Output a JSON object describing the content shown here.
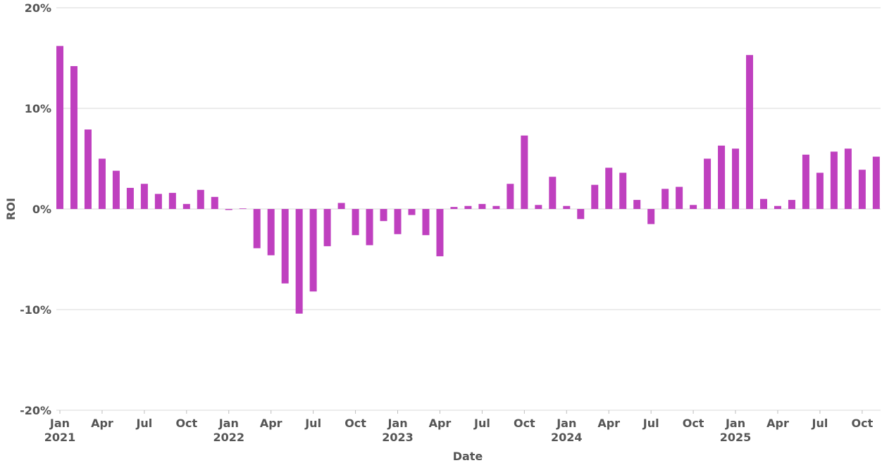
{
  "chart_data": {
    "type": "bar",
    "xlabel": "Date",
    "ylabel": "ROI",
    "ylim": [
      -20,
      20
    ],
    "y_ticks": [
      {
        "value": 20,
        "label": "20%"
      },
      {
        "value": 10,
        "label": "10%"
      },
      {
        "value": 0,
        "label": "0%"
      },
      {
        "value": -10,
        "label": "-10%"
      },
      {
        "value": -20,
        "label": "-20%"
      }
    ],
    "x_ticks": [
      {
        "date": "2021-01",
        "label": "Jan",
        "year": "2021"
      },
      {
        "date": "2021-04",
        "label": "Apr",
        "year": ""
      },
      {
        "date": "2021-07",
        "label": "Jul",
        "year": ""
      },
      {
        "date": "2021-10",
        "label": "Oct",
        "year": ""
      },
      {
        "date": "2022-01",
        "label": "Jan",
        "year": "2022"
      },
      {
        "date": "2022-04",
        "label": "Apr",
        "year": ""
      },
      {
        "date": "2022-07",
        "label": "Jul",
        "year": ""
      },
      {
        "date": "2022-10",
        "label": "Oct",
        "year": ""
      },
      {
        "date": "2023-01",
        "label": "Jan",
        "year": "2023"
      },
      {
        "date": "2023-04",
        "label": "Apr",
        "year": ""
      },
      {
        "date": "2023-07",
        "label": "Jul",
        "year": ""
      },
      {
        "date": "2023-10",
        "label": "Oct",
        "year": ""
      },
      {
        "date": "2024-01",
        "label": "Jan",
        "year": "2024"
      },
      {
        "date": "2024-04",
        "label": "Apr",
        "year": ""
      },
      {
        "date": "2024-07",
        "label": "Jul",
        "year": ""
      },
      {
        "date": "2024-10",
        "label": "Oct",
        "year": ""
      },
      {
        "date": "2025-01",
        "label": "Jan",
        "year": "2025"
      },
      {
        "date": "2025-04",
        "label": "Apr",
        "year": ""
      },
      {
        "date": "2025-07",
        "label": "Jul",
        "year": ""
      },
      {
        "date": "2025-10",
        "label": "Oct",
        "year": ""
      }
    ],
    "bar_color": "#bf40bf",
    "grid": true,
    "x": [
      "2021-01",
      "2021-02",
      "2021-03",
      "2021-04",
      "2021-05",
      "2021-06",
      "2021-07",
      "2021-08",
      "2021-09",
      "2021-10",
      "2021-11",
      "2021-12",
      "2022-01",
      "2022-02",
      "2022-03",
      "2022-04",
      "2022-05",
      "2022-06",
      "2022-07",
      "2022-08",
      "2022-09",
      "2022-10",
      "2022-11",
      "2022-12",
      "2023-01",
      "2023-02",
      "2023-03",
      "2023-04",
      "2023-05",
      "2023-06",
      "2023-07",
      "2023-08",
      "2023-09",
      "2023-10",
      "2023-11",
      "2023-12",
      "2024-01",
      "2024-02",
      "2024-03",
      "2024-04",
      "2024-05",
      "2024-06",
      "2024-07",
      "2024-08",
      "2024-09",
      "2024-10",
      "2024-11",
      "2024-12",
      "2025-01",
      "2025-02",
      "2025-03",
      "2025-04",
      "2025-05",
      "2025-06",
      "2025-07",
      "2025-08",
      "2025-09",
      "2025-10",
      "2025-11"
    ],
    "values": [
      16.2,
      14.2,
      7.9,
      5.0,
      3.8,
      2.1,
      2.5,
      1.5,
      1.6,
      0.5,
      1.9,
      1.2,
      -0.1,
      0.0,
      -3.9,
      -4.6,
      -7.4,
      -10.4,
      -8.2,
      -3.7,
      0.6,
      -2.6,
      -3.6,
      -1.2,
      -2.5,
      -0.6,
      -2.6,
      -4.7,
      0.2,
      0.3,
      0.5,
      0.3,
      2.5,
      7.3,
      0.4,
      3.2,
      0.3,
      -1.0,
      2.4,
      4.1,
      3.6,
      0.9,
      -1.5,
      2.0,
      2.2,
      0.4,
      5.0,
      6.3,
      6.0,
      15.3,
      1.0,
      0.3,
      0.9,
      5.4,
      3.6,
      5.7,
      6.0,
      3.9,
      5.2
    ]
  }
}
